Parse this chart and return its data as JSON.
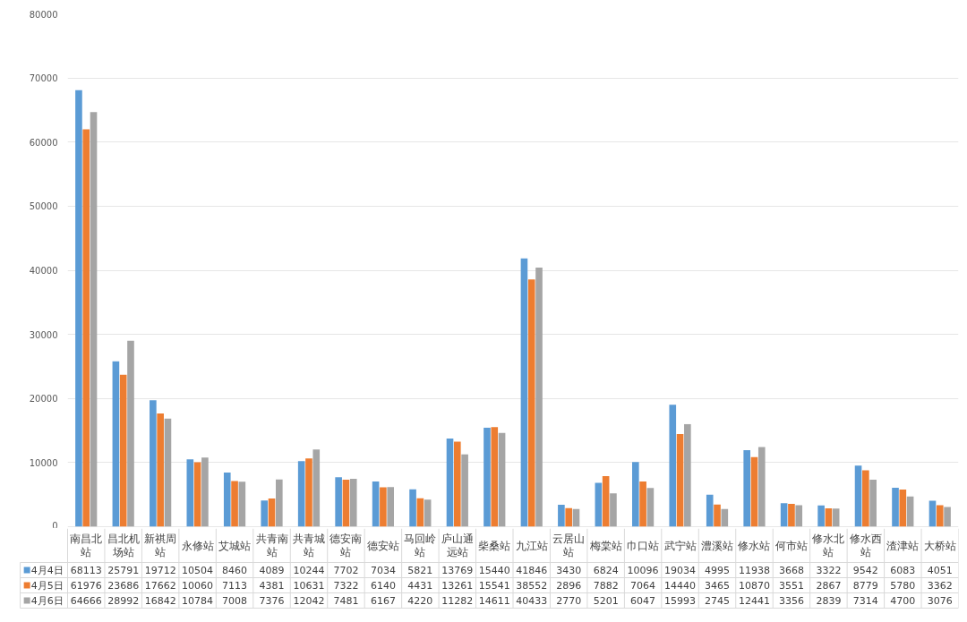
{
  "chart_data": {
    "type": "bar",
    "categories": [
      "南昌北站",
      "昌北机场站",
      "新祺周站",
      "永修站",
      "艾城站",
      "共青南站",
      "共青城站",
      "德安南站",
      "德安站",
      "马回岭站",
      "庐山通远站",
      "柴桑站",
      "九江站",
      "云居山站",
      "梅棠站",
      "巾口站",
      "武宁站",
      "澧溪站",
      "修水站",
      "何市站",
      "修水北站",
      "修水西站",
      "渣津站",
      "大桥站"
    ],
    "series": [
      {
        "name": "4月4日",
        "color": "#5b9bd5",
        "values": [
          68113,
          25791,
          19712,
          10504,
          8460,
          4089,
          10244,
          7702,
          7034,
          5821,
          13769,
          15440,
          41846,
          3430,
          6824,
          10096,
          19034,
          4995,
          11938,
          3668,
          3322,
          9542,
          6083,
          4051
        ]
      },
      {
        "name": "4月5日",
        "color": "#ed7d31",
        "values": [
          61976,
          23686,
          17662,
          10060,
          7113,
          4381,
          10631,
          7322,
          6140,
          4431,
          13261,
          15541,
          38552,
          2896,
          7882,
          7064,
          14440,
          3465,
          10870,
          3551,
          2867,
          8779,
          5780,
          3362
        ]
      },
      {
        "name": "4月6日",
        "color": "#a5a5a5",
        "values": [
          64666,
          28992,
          16842,
          10784,
          7008,
          7376,
          12042,
          7481,
          6167,
          4220,
          11282,
          14611,
          40433,
          2770,
          5201,
          6047,
          15993,
          2745,
          12441,
          3356,
          2839,
          7314,
          4700,
          3076
        ]
      }
    ],
    "ylim": [
      0,
      80000
    ],
    "yticks": [
      0,
      10000,
      20000,
      30000,
      40000,
      50000,
      60000,
      70000,
      80000
    ],
    "grid": "y",
    "legend": "bottom",
    "data_labels": true
  }
}
